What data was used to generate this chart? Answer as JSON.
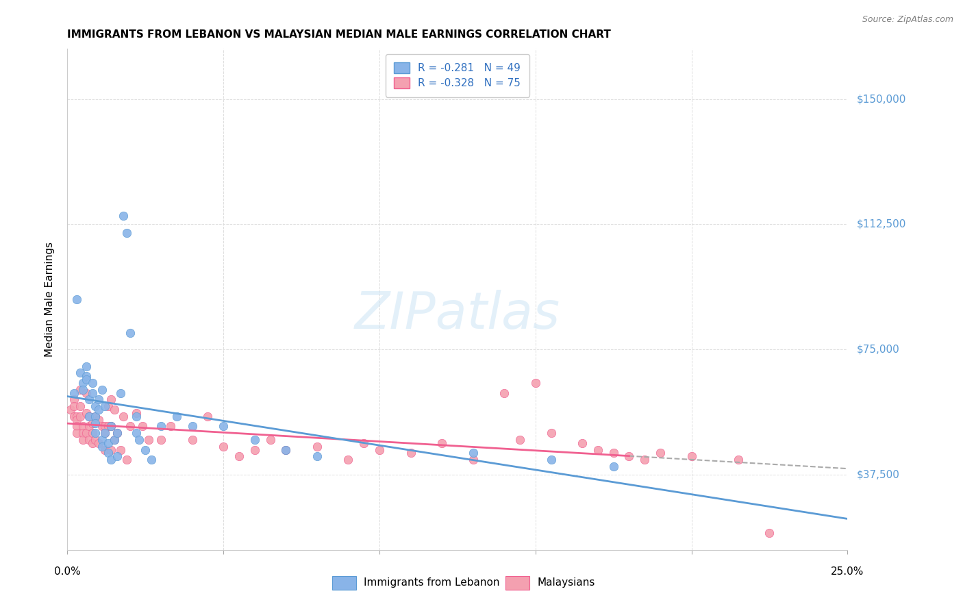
{
  "title": "IMMIGRANTS FROM LEBANON VS MALAYSIAN MEDIAN MALE EARNINGS CORRELATION CHART",
  "source": "Source: ZipAtlas.com",
  "ylabel": "Median Male Earnings",
  "ytick_labels": [
    "$37,500",
    "$75,000",
    "$112,500",
    "$150,000"
  ],
  "ytick_values": [
    37500,
    75000,
    112500,
    150000
  ],
  "ylim": [
    15000,
    165000
  ],
  "xlim": [
    0.0,
    0.25
  ],
  "legend_entry1": "R = -0.281   N = 49",
  "legend_entry2": "R = -0.328   N = 75",
  "legend_label1": "Immigrants from Lebanon",
  "legend_label2": "Malaysians",
  "color_blue": "#89b4e8",
  "color_pink": "#f4a0b0",
  "color_blue_line": "#5b9bd5",
  "color_pink_line": "#f06090",
  "color_dashed": "#aaaaaa",
  "xtick_positions": [
    0.0,
    0.05,
    0.1,
    0.15,
    0.2,
    0.25
  ],
  "xtick_labels": [
    "0.0%",
    "",
    "",
    "",
    "",
    "25.0%"
  ],
  "blue_scatter_x": [
    0.002,
    0.003,
    0.004,
    0.005,
    0.005,
    0.006,
    0.006,
    0.006,
    0.007,
    0.007,
    0.008,
    0.008,
    0.009,
    0.009,
    0.009,
    0.009,
    0.01,
    0.01,
    0.011,
    0.011,
    0.011,
    0.012,
    0.012,
    0.013,
    0.013,
    0.014,
    0.014,
    0.015,
    0.016,
    0.016,
    0.017,
    0.018,
    0.019,
    0.02,
    0.022,
    0.022,
    0.023,
    0.025,
    0.027,
    0.03,
    0.035,
    0.04,
    0.05,
    0.06,
    0.07,
    0.08,
    0.13,
    0.155,
    0.175
  ],
  "blue_scatter_y": [
    62000,
    90000,
    68000,
    65000,
    63000,
    70000,
    67000,
    66000,
    60000,
    55000,
    65000,
    62000,
    58000,
    55000,
    53000,
    50000,
    57000,
    60000,
    63000,
    48000,
    46000,
    58000,
    50000,
    47000,
    44000,
    42000,
    52000,
    48000,
    50000,
    43000,
    62000,
    115000,
    110000,
    80000,
    55000,
    50000,
    48000,
    45000,
    42000,
    52000,
    55000,
    52000,
    52000,
    48000,
    45000,
    43000,
    44000,
    42000,
    40000
  ],
  "pink_scatter_x": [
    0.001,
    0.002,
    0.002,
    0.002,
    0.003,
    0.003,
    0.003,
    0.003,
    0.004,
    0.004,
    0.004,
    0.005,
    0.005,
    0.005,
    0.006,
    0.006,
    0.006,
    0.007,
    0.007,
    0.007,
    0.008,
    0.008,
    0.008,
    0.009,
    0.009,
    0.01,
    0.01,
    0.011,
    0.012,
    0.012,
    0.012,
    0.013,
    0.013,
    0.014,
    0.014,
    0.014,
    0.015,
    0.015,
    0.016,
    0.017,
    0.018,
    0.019,
    0.02,
    0.022,
    0.024,
    0.026,
    0.03,
    0.033,
    0.04,
    0.045,
    0.05,
    0.055,
    0.06,
    0.065,
    0.07,
    0.08,
    0.09,
    0.095,
    0.1,
    0.11,
    0.12,
    0.13,
    0.14,
    0.145,
    0.15,
    0.155,
    0.165,
    0.17,
    0.175,
    0.18,
    0.185,
    0.19,
    0.2,
    0.215,
    0.225
  ],
  "pink_scatter_y": [
    57000,
    60000,
    58000,
    55000,
    55000,
    54000,
    52000,
    50000,
    63000,
    58000,
    55000,
    52000,
    50000,
    48000,
    62000,
    56000,
    50000,
    55000,
    52000,
    48000,
    53000,
    50000,
    47000,
    55000,
    48000,
    54000,
    47000,
    52000,
    52000,
    50000,
    45000,
    58000,
    52000,
    60000,
    52000,
    45000,
    57000,
    48000,
    50000,
    45000,
    55000,
    42000,
    52000,
    56000,
    52000,
    48000,
    48000,
    52000,
    48000,
    55000,
    46000,
    43000,
    45000,
    48000,
    45000,
    46000,
    42000,
    47000,
    45000,
    44000,
    47000,
    42000,
    62000,
    48000,
    65000,
    50000,
    47000,
    45000,
    44000,
    43000,
    42000,
    44000,
    43000,
    42000,
    20000
  ]
}
